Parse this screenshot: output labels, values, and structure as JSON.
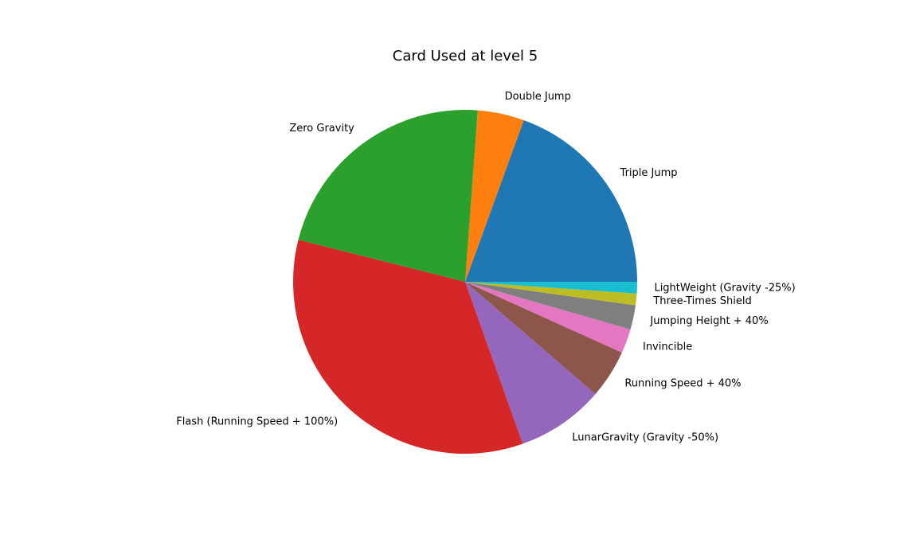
{
  "chart_data": {
    "type": "pie",
    "title": "Card Used at level 5",
    "start_angle_deg": 0,
    "direction": "counterclockwise",
    "slices": [
      {
        "label": "Triple Jump",
        "value": 19.6,
        "color": "#1f77b4"
      },
      {
        "label": "Double Jump",
        "value": 4.4,
        "color": "#ff7f0e"
      },
      {
        "label": "Zero Gravity",
        "value": 22.4,
        "color": "#2ca02c"
      },
      {
        "label": "Flash (Running Speed + 100%)",
        "value": 34.6,
        "color": "#d62728"
      },
      {
        "label": "LunarGravity (Gravity -50%)",
        "value": 8.3,
        "color": "#9467bd"
      },
      {
        "label": "Running Speed + 40%",
        "value": 4.6,
        "color": "#8c564b"
      },
      {
        "label": "Invincible",
        "value": 2.3,
        "color": "#e377c2"
      },
      {
        "label": "Jumping Height + 40%",
        "value": 2.3,
        "color": "#7f7f7f"
      },
      {
        "label": "Three-Times Shield",
        "value": 1.1,
        "color": "#bcbd22"
      },
      {
        "label": "LightWeight (Gravity -25%)",
        "value": 1.1,
        "color": "#17becf"
      }
    ]
  }
}
